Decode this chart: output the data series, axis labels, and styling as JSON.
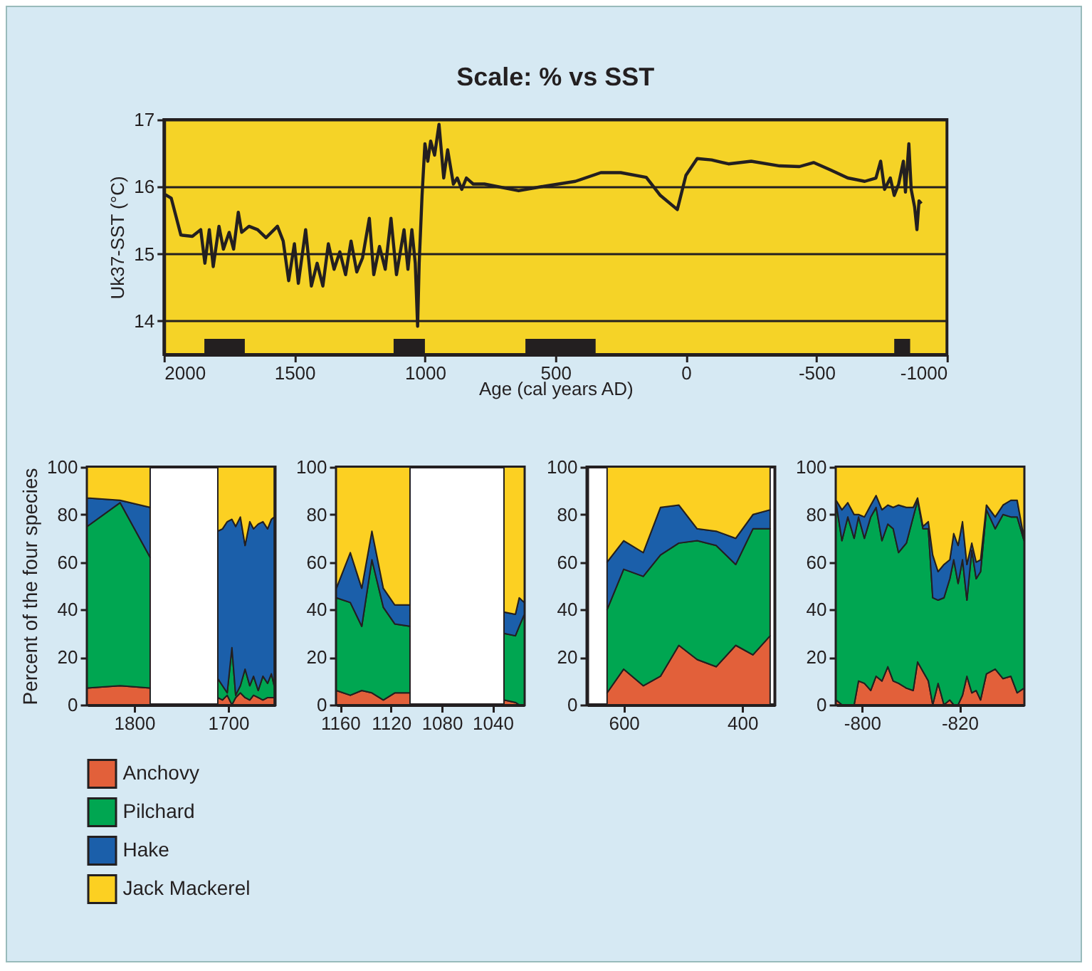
{
  "chart_data": [
    {
      "type": "line",
      "title": "Scale: % vs SST",
      "xlabel": "Age (cal years AD)",
      "ylabel": "Uk37-SST (°C)",
      "xlim": [
        2000,
        -1000
      ],
      "xticks": [
        2000,
        1500,
        1000,
        500,
        0,
        -500,
        -1000
      ],
      "ylim": [
        13.5,
        17
      ],
      "yticks": [
        14,
        15,
        16,
        17
      ],
      "grid": "y",
      "x": [
        2000,
        1989,
        1972,
        1935,
        1891,
        1859,
        1843,
        1826,
        1811,
        1789,
        1772,
        1750,
        1733,
        1715,
        1702,
        1674,
        1641,
        1609,
        1565,
        1543,
        1522,
        1500,
        1485,
        1457,
        1435,
        1413,
        1391,
        1370,
        1348,
        1326,
        1304,
        1283,
        1261,
        1239,
        1213,
        1196,
        1174,
        1152,
        1130,
        1109,
        1080,
        1065,
        1050,
        1037,
        1028,
        1022,
        1011,
        1000,
        989,
        978,
        963,
        946,
        928,
        913,
        891,
        876,
        859,
        841,
        815,
        772,
        641,
        554,
        424,
        326,
        250,
        152,
        98,
        33,
        0,
        -43,
        -98,
        -163,
        -250,
        -359,
        -435,
        -489,
        -554,
        -620,
        -685,
        -728,
        -746,
        -761,
        -783,
        -798,
        -815,
        -833,
        -841,
        -854,
        -863,
        -876,
        -885,
        -893,
        -902
      ],
      "series": [
        {
          "color": "#231f20",
          "values": [
            15.89,
            15.87,
            15.83,
            15.28,
            15.26,
            15.36,
            14.86,
            15.36,
            14.81,
            15.41,
            15.07,
            15.32,
            15.07,
            15.62,
            15.32,
            15.41,
            15.36,
            15.24,
            15.41,
            15.19,
            14.6,
            15.15,
            14.56,
            15.36,
            14.52,
            14.86,
            14.52,
            15.15,
            14.77,
            15.03,
            14.69,
            15.19,
            14.73,
            14.94,
            15.53,
            14.69,
            15.11,
            14.77,
            15.53,
            14.69,
            15.36,
            14.77,
            15.36,
            14.86,
            13.92,
            14.86,
            15.87,
            16.64,
            16.38,
            16.68,
            16.47,
            16.93,
            16.13,
            16.55,
            16.04,
            16.13,
            15.96,
            16.13,
            16.04,
            16.04,
            15.94,
            16.0,
            16.08,
            16.21,
            16.21,
            16.14,
            15.87,
            15.66,
            16.17,
            16.42,
            16.4,
            16.34,
            16.38,
            16.31,
            16.3,
            16.36,
            16.25,
            16.13,
            16.08,
            16.13,
            16.38,
            15.96,
            16.13,
            15.87,
            16.04,
            16.38,
            15.92,
            16.64,
            15.96,
            15.7,
            15.36,
            15.79,
            15.75
          ]
        }
      ],
      "bands": [
        {
          "axis": "x",
          "from": 1845,
          "to": 1690,
          "color": "#231f20"
        },
        {
          "axis": "x",
          "from": 1120,
          "to": 1000,
          "color": "#231f20"
        },
        {
          "axis": "x",
          "from": 615,
          "to": 346,
          "color": "#231f20"
        },
        {
          "axis": "x",
          "from": -798,
          "to": -859,
          "color": "#231f20"
        }
      ]
    },
    {
      "type": "area",
      "stacked": true,
      "ylabel": "Percent of the four species",
      "xlim": [
        1850,
        1650
      ],
      "xticks": [
        1800,
        1700
      ],
      "ylim": [
        0,
        100
      ],
      "yticks": [
        0,
        20,
        40,
        60,
        80,
        100
      ],
      "legend": "bottom left",
      "x": [
        1850,
        1815,
        1783,
        1747,
        1711,
        1706,
        1701,
        1696,
        1692,
        1687,
        1682,
        1677,
        1673,
        1668,
        1663,
        1658,
        1654,
        1651
      ],
      "series": [
        {
          "name": "Anchovy",
          "color": "#e2603a",
          "values": [
            7,
            8,
            7,
            null,
            3,
            2,
            4,
            0,
            3,
            5,
            3,
            2,
            4,
            3,
            2,
            3,
            3,
            3
          ]
        },
        {
          "name": "Pilchard",
          "color": "#00a651",
          "values": [
            68,
            77,
            55,
            null,
            8,
            6,
            1,
            24,
            1,
            3,
            12,
            6,
            8,
            3,
            10,
            6,
            10,
            5
          ]
        },
        {
          "name": "Hake",
          "color": "#1b5faa",
          "values": [
            12,
            1,
            21,
            null,
            62,
            66,
            72,
            54,
            71,
            71,
            52,
            69,
            62,
            70,
            65,
            65,
            65,
            71
          ]
        },
        {
          "name": "Jack Mackerel",
          "color": "#fcd022",
          "values": [
            13,
            14,
            17,
            null,
            27,
            26,
            23,
            22,
            25,
            21,
            33,
            23,
            26,
            24,
            23,
            26,
            22,
            21
          ]
        }
      ]
    },
    {
      "type": "area",
      "stacked": true,
      "xlim": [
        1163,
        1015
      ],
      "xticks": [
        1160,
        1120,
        1080,
        1040
      ],
      "ylim": [
        0,
        100
      ],
      "yticks": [
        0,
        20,
        40,
        60,
        80,
        100
      ],
      "x": [
        1163,
        1152,
        1143,
        1135,
        1126,
        1117,
        1105,
        1070,
        1031,
        1022,
        1019,
        1015
      ],
      "series": [
        {
          "color": "#e2603a",
          "values": [
            6,
            4,
            6,
            5,
            2,
            5,
            5,
            null,
            2,
            1,
            0,
            0
          ]
        },
        {
          "color": "#00a651",
          "values": [
            39,
            39,
            27,
            56,
            39,
            29,
            28,
            null,
            28,
            28,
            33,
            38
          ]
        },
        {
          "color": "#1b5faa",
          "values": [
            4,
            21,
            16,
            12,
            8,
            8,
            9,
            null,
            9,
            9,
            12,
            5
          ]
        },
        {
          "color": "#fcd022",
          "values": [
            51,
            36,
            51,
            27,
            51,
            58,
            58,
            null,
            61,
            62,
            55,
            57
          ]
        }
      ]
    },
    {
      "type": "area",
      "stacked": true,
      "xlim": [
        662,
        345
      ],
      "xticks": [
        600,
        400
      ],
      "ylim": [
        0,
        100
      ],
      "yticks": [
        0,
        20,
        40,
        60,
        80,
        100
      ],
      "x": [
        628,
        600,
        567,
        538,
        507,
        476,
        444,
        411,
        382,
        353
      ],
      "series": [
        {
          "color": "#e2603a",
          "values": [
            5,
            15,
            8,
            12,
            25,
            19,
            16,
            25,
            21,
            29
          ]
        },
        {
          "color": "#00a651",
          "values": [
            35,
            42,
            46,
            51,
            43,
            50,
            51,
            34,
            53,
            45
          ]
        },
        {
          "color": "#1b5faa",
          "values": [
            20,
            12,
            10,
            20,
            16,
            5,
            6,
            11,
            6,
            8
          ]
        },
        {
          "color": "#fcd022",
          "values": [
            40,
            31,
            36,
            17,
            16,
            26,
            27,
            30,
            20,
            18
          ]
        }
      ]
    },
    {
      "type": "area",
      "stacked": true,
      "xlim": [
        -794.7,
        -833.2
      ],
      "xticks": [
        -800,
        -820
      ],
      "ylim": [
        0,
        100
      ],
      "yticks": [
        0,
        20,
        40,
        60,
        80,
        100
      ],
      "x": [
        -794.7,
        -795.9,
        -797.1,
        -798.4,
        -799.3,
        -800.5,
        -801.8,
        -802.9,
        -804.1,
        -805.3,
        -806.4,
        -807.5,
        -809.1,
        -810.5,
        -811.4,
        -812.5,
        -813.6,
        -814.5,
        -815.6,
        -816.8,
        -818,
        -818.8,
        -819.7,
        -820.6,
        -821.5,
        -822.5,
        -823.4,
        -824.3,
        -825.5,
        -827.3,
        -828.9,
        -830.5,
        -831.8,
        -833.2
      ],
      "series": [
        {
          "color": "#e2603a",
          "values": [
            2,
            0,
            0,
            0,
            10,
            9,
            6,
            12,
            10,
            16,
            10,
            9,
            7,
            6,
            18,
            14,
            10,
            0,
            9,
            0,
            2,
            0,
            0,
            4,
            12,
            5,
            6,
            2,
            13,
            15,
            11,
            12,
            5,
            7
          ]
        },
        {
          "color": "#00a651",
          "values": [
            83,
            69,
            79,
            70,
            69,
            61,
            73,
            71,
            59,
            60,
            64,
            55,
            61,
            73,
            68,
            60,
            64,
            45,
            35,
            45,
            51,
            61,
            51,
            57,
            32,
            60,
            47,
            54,
            69,
            59,
            69,
            67,
            74,
            62
          ]
        },
        {
          "color": "#1b5faa",
          "values": [
            1,
            13,
            6,
            10,
            1,
            9,
            5,
            5,
            13,
            8,
            9,
            20,
            15,
            4,
            1,
            1,
            3,
            18,
            12,
            14,
            8,
            11,
            16,
            16,
            15,
            3,
            7,
            5,
            2,
            5,
            4,
            7,
            7,
            1
          ]
        },
        {
          "color": "#fcd022",
          "values": [
            14,
            18,
            15,
            20,
            20,
            21,
            16,
            12,
            18,
            16,
            17,
            16,
            17,
            17,
            13,
            25,
            23,
            37,
            44,
            41,
            39,
            28,
            33,
            23,
            41,
            32,
            40,
            39,
            16,
            21,
            16,
            14,
            14,
            30
          ]
        }
      ]
    }
  ]
}
